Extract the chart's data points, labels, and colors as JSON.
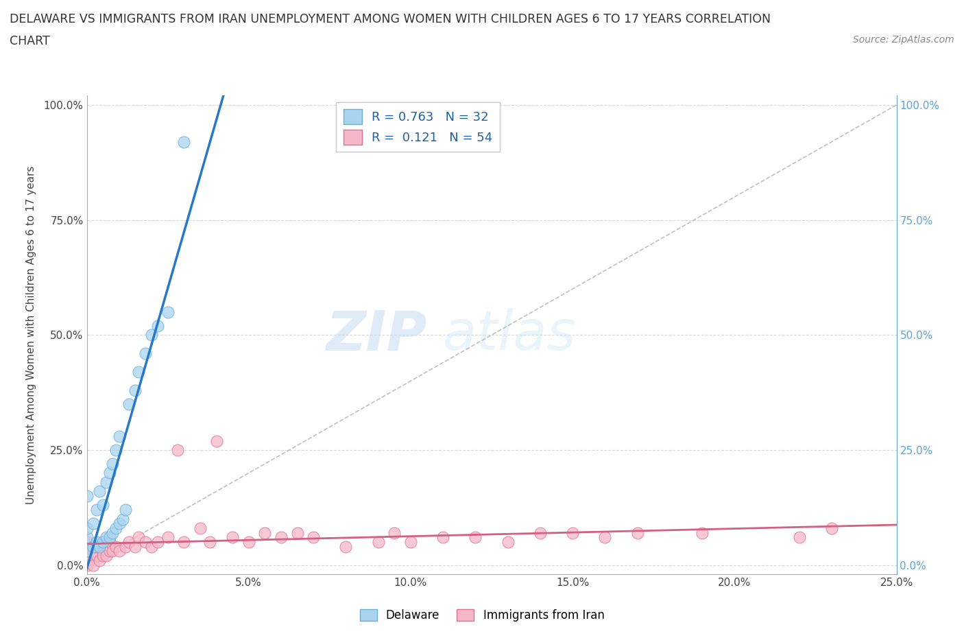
{
  "title_line1": "DELAWARE VS IMMIGRANTS FROM IRAN UNEMPLOYMENT AMONG WOMEN WITH CHILDREN AGES 6 TO 17 YEARS CORRELATION",
  "title_line2": "CHART",
  "source": "Source: ZipAtlas.com",
  "ylabel": "Unemployment Among Women with Children Ages 6 to 17 years",
  "xlim": [
    0.0,
    0.25
  ],
  "ylim": [
    -0.02,
    1.02
  ],
  "xtick_labels": [
    "0.0%",
    "5.0%",
    "10.0%",
    "15.0%",
    "20.0%",
    "25.0%"
  ],
  "xtick_values": [
    0.0,
    0.05,
    0.1,
    0.15,
    0.2,
    0.25
  ],
  "ytick_labels": [
    "0.0%",
    "25.0%",
    "50.0%",
    "75.0%",
    "100.0%"
  ],
  "ytick_values": [
    0.0,
    0.25,
    0.5,
    0.75,
    1.0
  ],
  "right_ytick_labels": [
    "0.0%",
    "25.0%",
    "50.0%",
    "75.0%",
    "100.0%"
  ],
  "delaware_color": "#a8d4f0",
  "delaware_edge": "#6aaed6",
  "iran_color": "#f5b8c8",
  "iran_edge": "#e07090",
  "delaware_R": 0.763,
  "delaware_N": 32,
  "iran_R": 0.121,
  "iran_N": 54,
  "delaware_line_color": "#2878c8",
  "iran_line_color": "#d45f80",
  "reference_line_color": "#b0b0b0",
  "grid_color": "#d8d8d8",
  "watermark_zip": "ZIP",
  "watermark_atlas": "atlas",
  "background_color": "#ffffff",
  "delaware_x": [
    0.0,
    0.0,
    0.0,
    0.0,
    0.002,
    0.002,
    0.003,
    0.003,
    0.004,
    0.004,
    0.005,
    0.005,
    0.006,
    0.006,
    0.007,
    0.007,
    0.008,
    0.008,
    0.009,
    0.009,
    0.01,
    0.01,
    0.011,
    0.012,
    0.013,
    0.015,
    0.016,
    0.018,
    0.02,
    0.022,
    0.025,
    0.03
  ],
  "delaware_y": [
    0.03,
    0.06,
    0.08,
    0.15,
    0.04,
    0.09,
    0.05,
    0.12,
    0.04,
    0.16,
    0.05,
    0.13,
    0.06,
    0.18,
    0.06,
    0.2,
    0.07,
    0.22,
    0.08,
    0.25,
    0.09,
    0.28,
    0.1,
    0.12,
    0.35,
    0.38,
    0.42,
    0.46,
    0.5,
    0.52,
    0.55,
    0.92
  ],
  "iran_x": [
    0.0,
    0.0,
    0.0,
    0.0,
    0.0,
    0.0,
    0.002,
    0.002,
    0.003,
    0.003,
    0.004,
    0.004,
    0.005,
    0.005,
    0.006,
    0.006,
    0.007,
    0.007,
    0.008,
    0.009,
    0.01,
    0.012,
    0.013,
    0.015,
    0.016,
    0.018,
    0.02,
    0.022,
    0.025,
    0.028,
    0.03,
    0.035,
    0.038,
    0.04,
    0.045,
    0.05,
    0.055,
    0.06,
    0.065,
    0.07,
    0.08,
    0.09,
    0.095,
    0.1,
    0.11,
    0.12,
    0.13,
    0.14,
    0.15,
    0.16,
    0.17,
    0.19,
    0.22,
    0.23
  ],
  "iran_y": [
    0.0,
    0.01,
    0.02,
    0.03,
    0.04,
    0.05,
    0.0,
    0.03,
    0.02,
    0.04,
    0.01,
    0.04,
    0.02,
    0.05,
    0.02,
    0.05,
    0.03,
    0.05,
    0.03,
    0.04,
    0.03,
    0.04,
    0.05,
    0.04,
    0.06,
    0.05,
    0.04,
    0.05,
    0.06,
    0.25,
    0.05,
    0.08,
    0.05,
    0.27,
    0.06,
    0.05,
    0.07,
    0.06,
    0.07,
    0.06,
    0.04,
    0.05,
    0.07,
    0.05,
    0.06,
    0.06,
    0.05,
    0.07,
    0.07,
    0.06,
    0.07,
    0.07,
    0.06,
    0.08
  ]
}
